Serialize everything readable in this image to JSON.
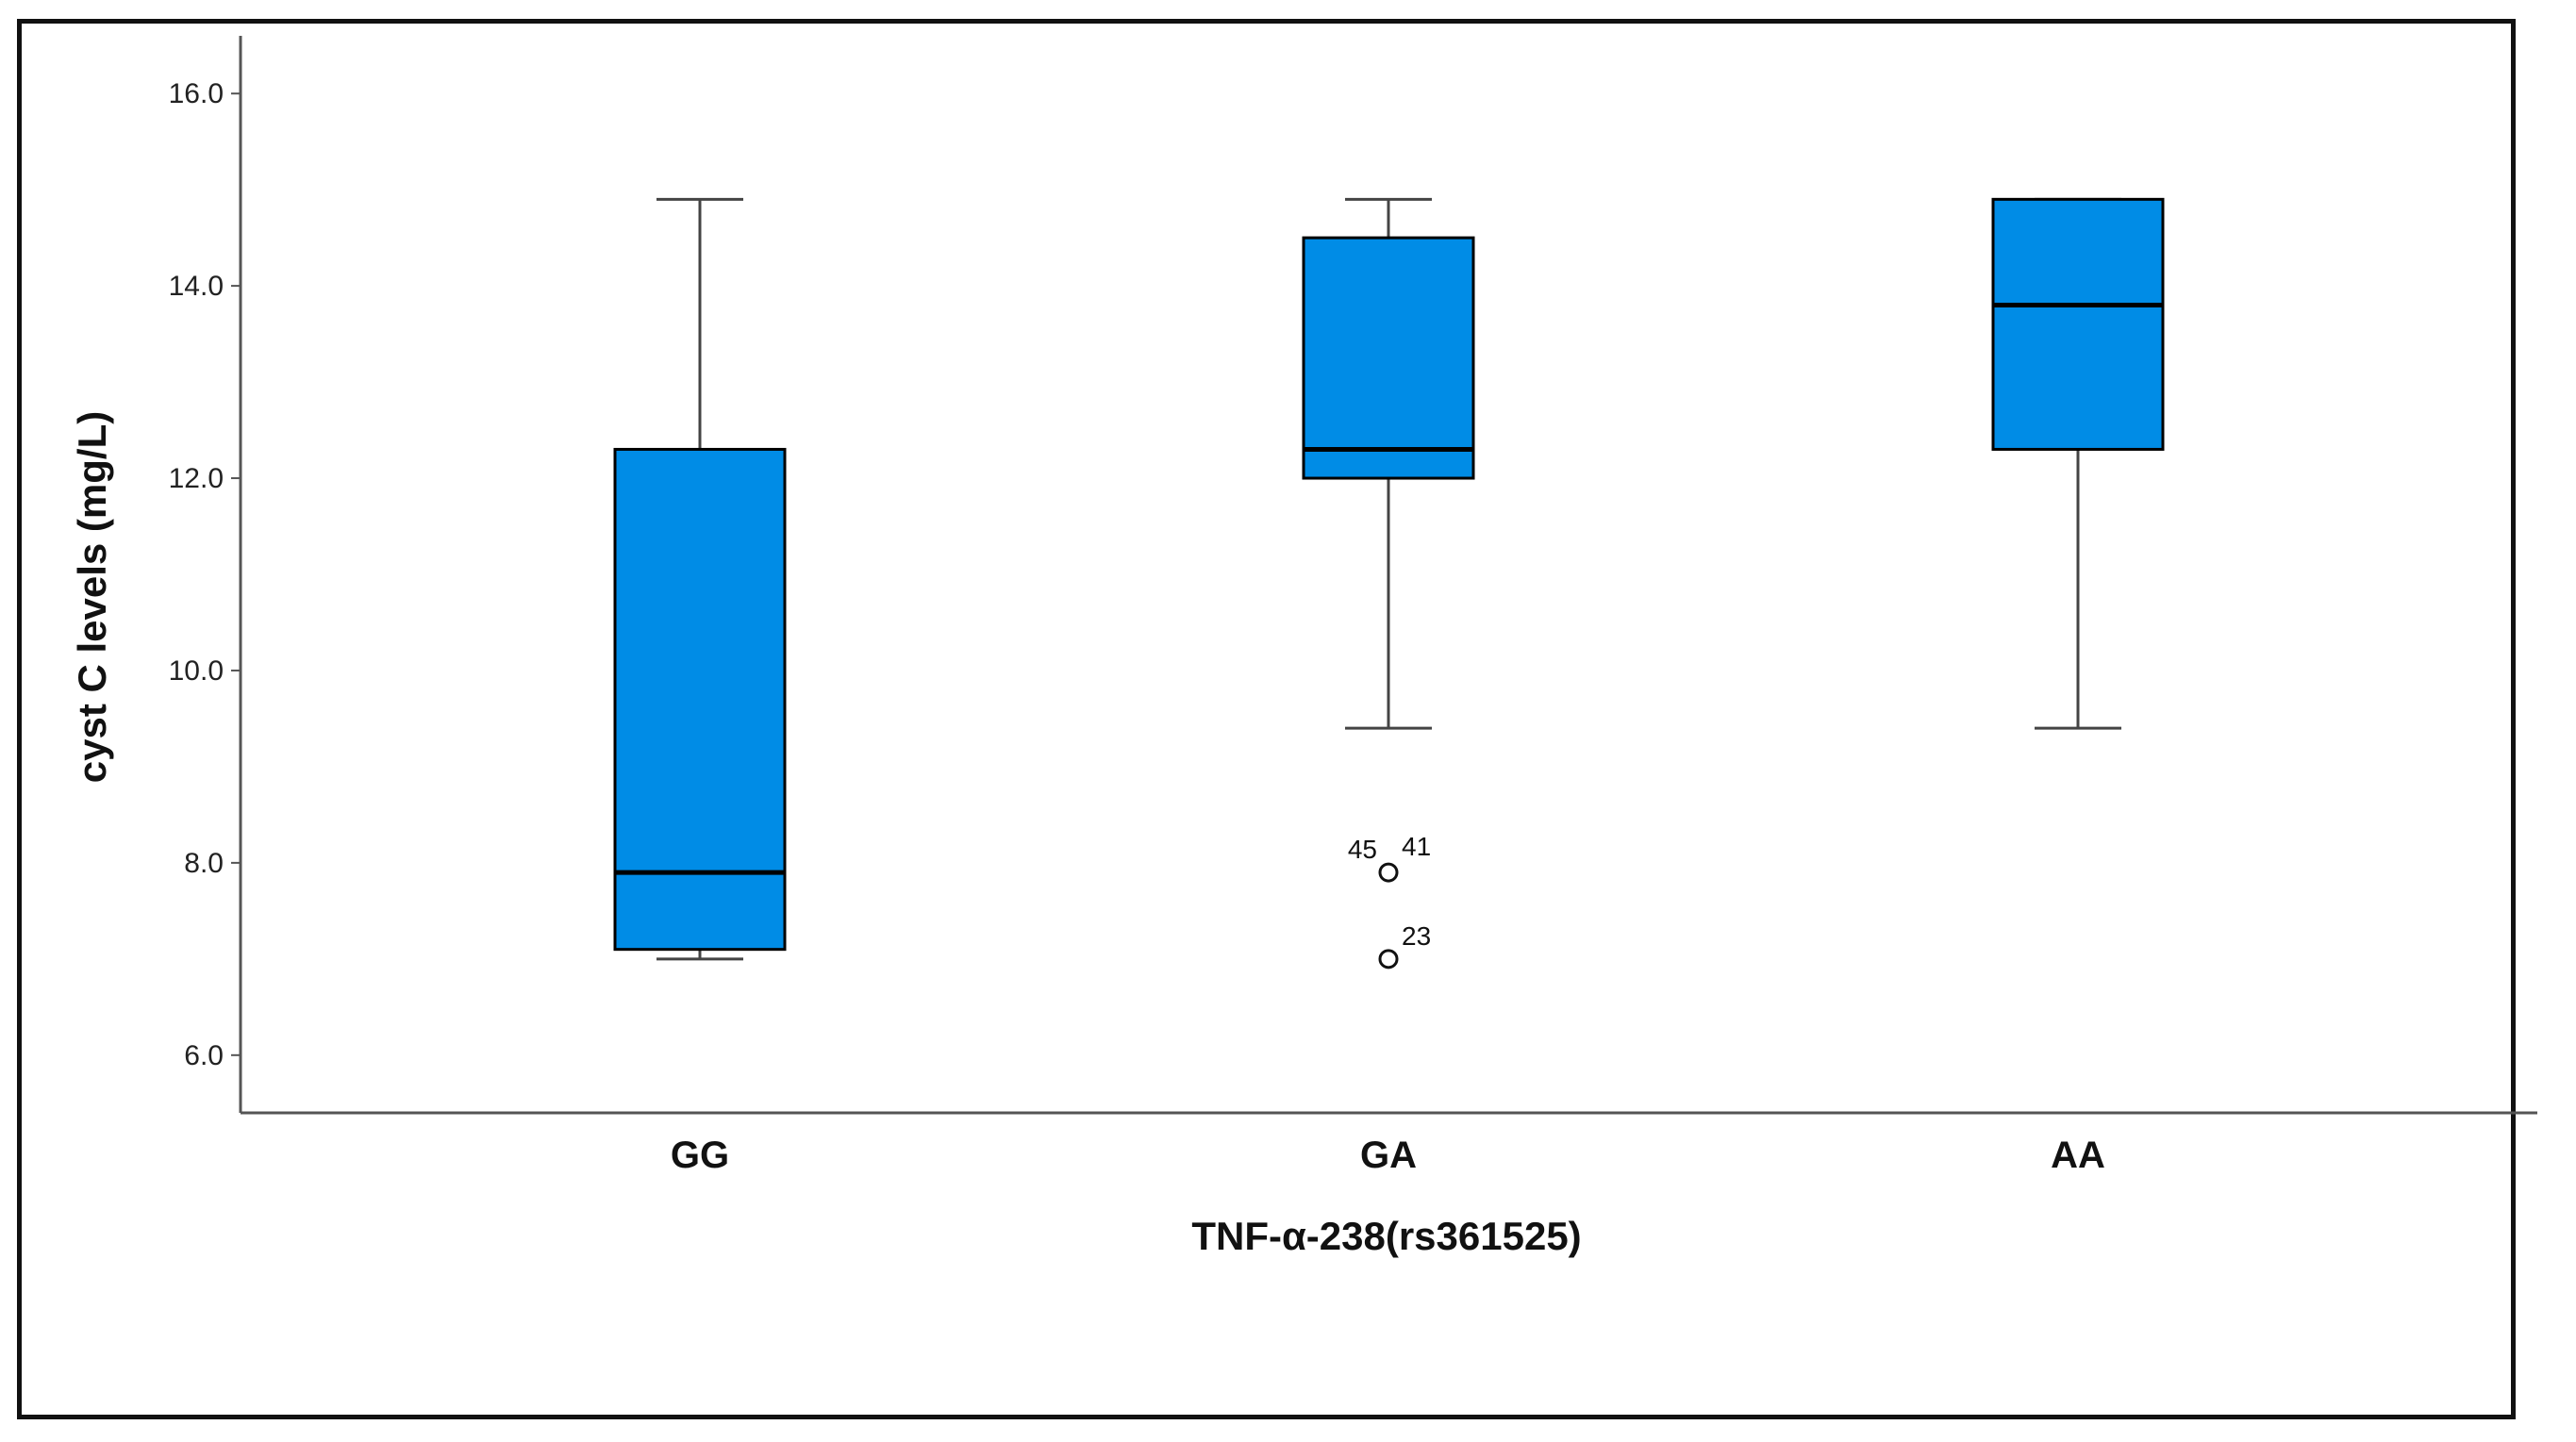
{
  "chart_data": {
    "type": "box",
    "title": "",
    "xlabel": "TNF-α-238(rs361525)",
    "ylabel": "cyst C levels (mg/L)",
    "ylim": [
      5.4,
      16.6
    ],
    "yticks": [
      6.0,
      8.0,
      10.0,
      12.0,
      14.0,
      16.0
    ],
    "ytick_labels": [
      "6.0",
      "8.0",
      "10.0",
      "12.0",
      "14.0",
      "16.0"
    ],
    "grid": false,
    "categories": [
      "GG",
      "GA",
      "AA"
    ],
    "boxes": [
      {
        "category": "GG",
        "whisker_low": 7.0,
        "q1": 7.1,
        "median": 7.9,
        "q3": 12.3,
        "whisker_high": 14.9,
        "outliers": []
      },
      {
        "category": "GA",
        "whisker_low": 9.4,
        "q1": 12.0,
        "median": 12.3,
        "q3": 14.5,
        "whisker_high": 14.9,
        "outliers": [
          {
            "value": 7.9,
            "labels": [
              "45",
              "41"
            ]
          },
          {
            "value": 7.0,
            "labels": [
              "23"
            ]
          }
        ]
      },
      {
        "category": "AA",
        "whisker_low": 9.4,
        "q1": 12.3,
        "median": 13.8,
        "q3": 14.9,
        "whisker_high": 14.9,
        "outliers": []
      }
    ],
    "colors": {
      "box_fill": "#008CE6",
      "box_stroke": "#000000",
      "median": "#000000",
      "whisker": "#444444",
      "axis": "#555555",
      "text": "#111111"
    }
  }
}
